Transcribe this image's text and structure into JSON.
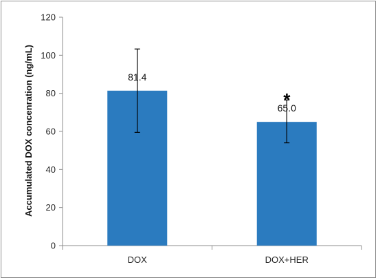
{
  "chart_data": {
    "type": "bar",
    "categories": [
      "DOX",
      "DOX+HER"
    ],
    "values": [
      81.4,
      65.0
    ],
    "data_labels": [
      "81.4",
      "65.0"
    ],
    "error_bars": [
      {
        "low": 59.5,
        "high": 103.3
      },
      {
        "low": 54.0,
        "high": 76.5
      }
    ],
    "annotations": [
      {
        "category": "DOX+HER",
        "text": "*"
      }
    ],
    "title": "",
    "xlabel": "",
    "ylabel": "Accumulated DOX concenration (ng/mL)",
    "ylim": [
      0,
      120
    ],
    "yticks": [
      0,
      20,
      40,
      60,
      80,
      100,
      120
    ],
    "grid": false,
    "legend": "none",
    "bar_color": "#2b7bbf"
  }
}
